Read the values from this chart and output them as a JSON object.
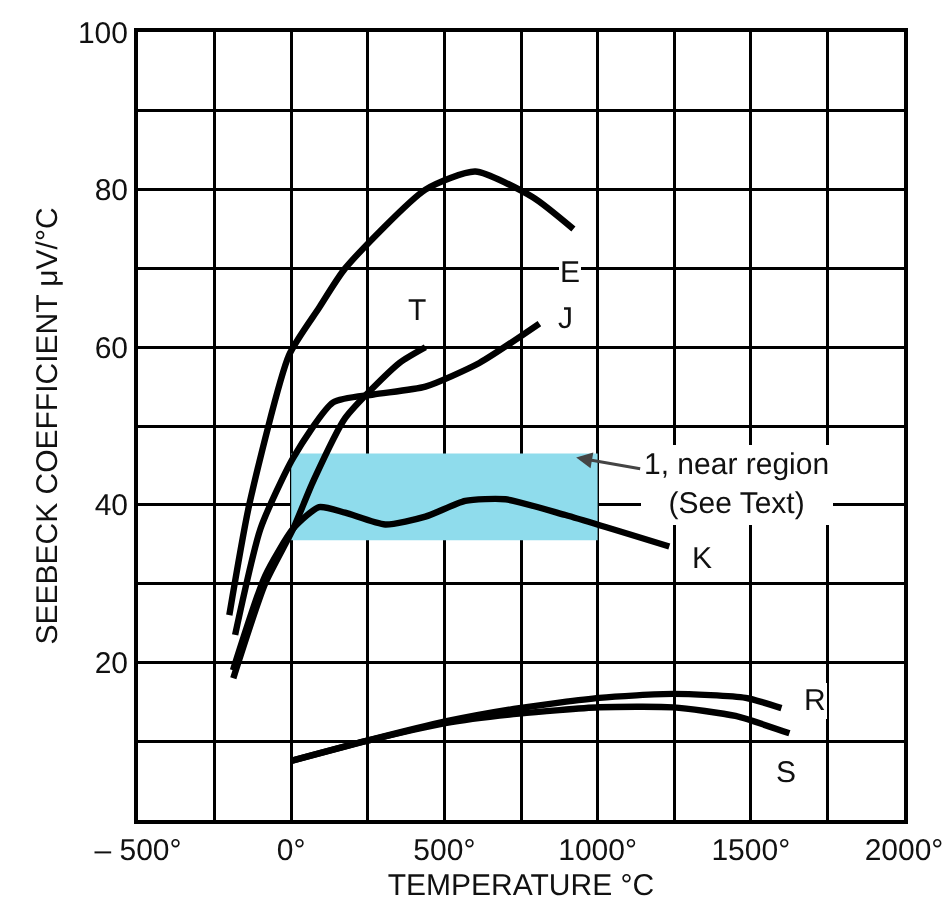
{
  "chart_data": {
    "type": "line",
    "xlabel": "TEMPERATURE °C",
    "ylabel": "SEEBECK COEFFICIENT μV/°C",
    "xlim": [
      -500,
      2000
    ],
    "xticks": [
      {
        "value": -500,
        "label": "– 500°"
      },
      {
        "value": -250,
        "label": null
      },
      {
        "value": 0,
        "label": "0°"
      },
      {
        "value": 250,
        "label": null
      },
      {
        "value": 500,
        "label": "500°"
      },
      {
        "value": 750,
        "label": null
      },
      {
        "value": 1000,
        "label": "1000°"
      },
      {
        "value": 1250,
        "label": null
      },
      {
        "value": 1500,
        "label": "1500°"
      },
      {
        "value": 1750,
        "label": null
      },
      {
        "value": 2000,
        "label": "2000°"
      }
    ],
    "ylim": [
      0,
      100
    ],
    "yticks": [
      {
        "value": 0,
        "label": null
      },
      {
        "value": 10,
        "label": null
      },
      20,
      {
        "value": 30,
        "label": null
      },
      40,
      {
        "value": 50,
        "label": null
      },
      60,
      {
        "value": 70,
        "label": null
      },
      80,
      {
        "value": 90,
        "label": null
      },
      100
    ],
    "grid": true,
    "legend": false,
    "marker": "none",
    "line_style": "solid",
    "series": [
      {
        "type": "area",
        "color": "#8fdcec",
        "x": [
          0,
          1000
        ],
        "values": [
          null,
          null
        ],
        "lower": [
          35.5,
          35.5
        ],
        "upper": [
          46.5,
          46.5
        ]
      },
      {
        "name": "E",
        "color": "#000000",
        "x": [
          -202,
          -137,
          -7,
          91,
          176,
          438,
          601,
          790,
          921
        ],
        "values": [
          26,
          40,
          59,
          65,
          70,
          80,
          82.3,
          79,
          75
        ]
      },
      {
        "name": "T",
        "color": "#000000",
        "x": [
          -189,
          -85,
          7,
          72,
          176,
          353,
          438
        ],
        "values": [
          18,
          30,
          37,
          43,
          51,
          58,
          60
        ]
      },
      {
        "name": "J",
        "color": "#000000",
        "x": [
          -183,
          -100,
          7,
          137,
          268,
          438,
          614,
          810
        ],
        "values": [
          23.5,
          37,
          46,
          53,
          54,
          55,
          58,
          63
        ]
      },
      {
        "name": "K",
        "color": "#000000",
        "x": [
          -190,
          -85,
          7,
          91,
          176,
          307,
          438,
          568,
          699,
          895,
          1234
        ],
        "values": [
          19,
          31,
          37,
          39.7,
          39,
          37.5,
          38.5,
          40.5,
          40.7,
          38.7,
          34.7
        ]
      },
      {
        "name": "R",
        "color": "#000000",
        "x": [
          0,
          242,
          503,
          744,
          1006,
          1247,
          1483,
          1600
        ],
        "values": [
          7.5,
          10,
          12.5,
          14.2,
          15.5,
          16,
          15.5,
          14.2
        ]
      },
      {
        "name": "S",
        "color": "#000000",
        "x": [
          0,
          242,
          503,
          744,
          1006,
          1247,
          1450,
          1626
        ],
        "values": [
          7.5,
          10,
          12.3,
          13.5,
          14.3,
          14.3,
          13.2,
          11
        ]
      }
    ],
    "annotations": [
      {
        "text": "1, near region\n(See Text)",
        "x": 930,
        "y": 46
      }
    ]
  }
}
